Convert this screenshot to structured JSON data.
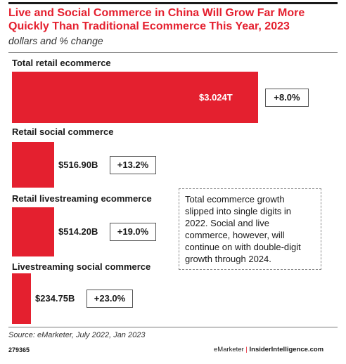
{
  "header": {
    "title": "Live and Social Commerce in China Will Grow Far More Quickly Than Traditional Ecommerce This Year, 2023",
    "subtitle": "dollars and % change"
  },
  "chart_data": {
    "type": "bar",
    "orientation": "horizontal",
    "unit": "dollars",
    "bar_color": "#e4202f",
    "categories": [
      "Total retail ecommerce",
      "Retail social commerce",
      "Retail livestreaming ecommerce",
      "Livestreaming social commerce"
    ],
    "values": [
      3024,
      516.9,
      514.2,
      234.75
    ],
    "value_labels": [
      "$3.024T",
      "$516.90B",
      "$514.20B",
      "$234.75B"
    ],
    "pct_change_labels": [
      "+8.0%",
      "+13.2%",
      "+19.0%",
      "+23.0%"
    ],
    "pct_change": [
      8.0,
      13.2,
      19.0,
      23.0
    ]
  },
  "note": "Total ecommerce growth slipped into single digits in 2022. Social and live commerce, however, will continue on with double-digit growth through 2024.",
  "footer": {
    "source": "Source: eMarketer, July 2022, Jan 2023",
    "chart_id": "279365",
    "brand_left": "eMarketer",
    "brand_separator": "|",
    "brand_right": "InsiderIntelligence.com"
  }
}
